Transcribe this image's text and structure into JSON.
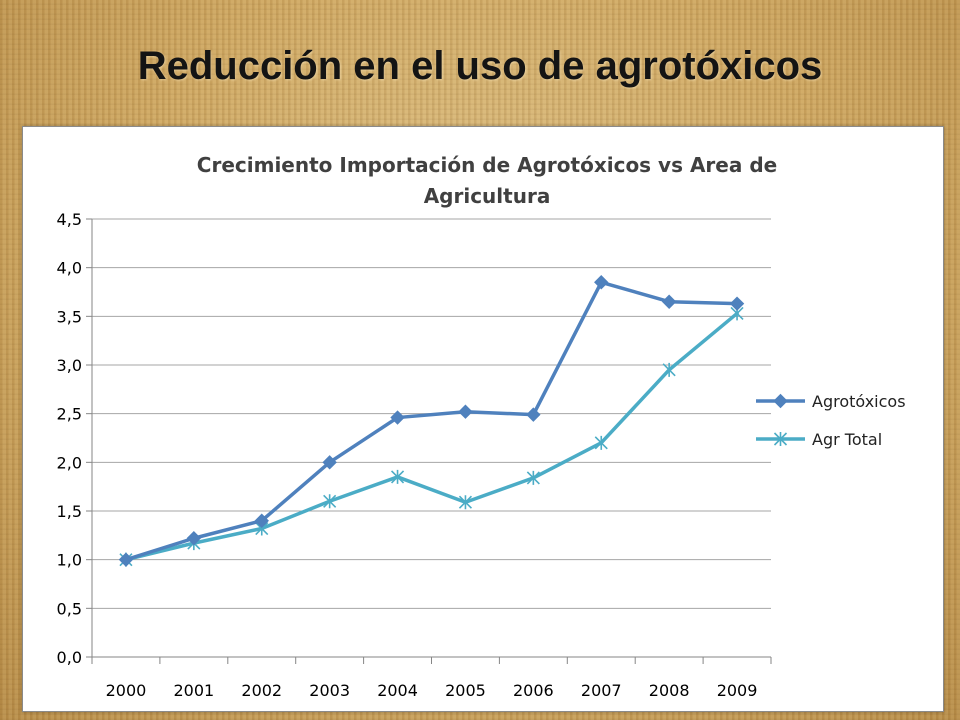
{
  "slide": {
    "title": "Reducción en el uso de agrotóxicos"
  },
  "colors": {
    "agrotoxicos": "#4f81bd",
    "agr_total": "#4bacc6",
    "grid": "#a6a6a6",
    "axis": "#868686"
  },
  "chart_data": {
    "type": "line",
    "title_lines": [
      "Crecimiento Importación de Agrotóxicos vs Area de",
      "Agricultura"
    ],
    "xlabel": "",
    "ylabel": "",
    "x": [
      "2000",
      "2001",
      "2002",
      "2003",
      "2004",
      "2005",
      "2006",
      "2007",
      "2008",
      "2009"
    ],
    "ylim": [
      0,
      4.5
    ],
    "yticks": [
      "0,0",
      "0,5",
      "1,0",
      "1,5",
      "2,0",
      "2,5",
      "3,0",
      "3,5",
      "4,0",
      "4,5"
    ],
    "grid": true,
    "legend_position": "right",
    "series": [
      {
        "name": "Agrotóxicos",
        "marker": "diamond",
        "color": "#4f81bd",
        "values": [
          1.0,
          1.22,
          1.4,
          2.0,
          2.46,
          2.52,
          2.49,
          3.85,
          3.65,
          3.63
        ]
      },
      {
        "name": "Agr Total",
        "marker": "asterisk",
        "color": "#4bacc6",
        "values": [
          1.0,
          1.17,
          1.32,
          1.6,
          1.85,
          1.59,
          1.84,
          2.2,
          2.95,
          3.53
        ]
      }
    ]
  }
}
